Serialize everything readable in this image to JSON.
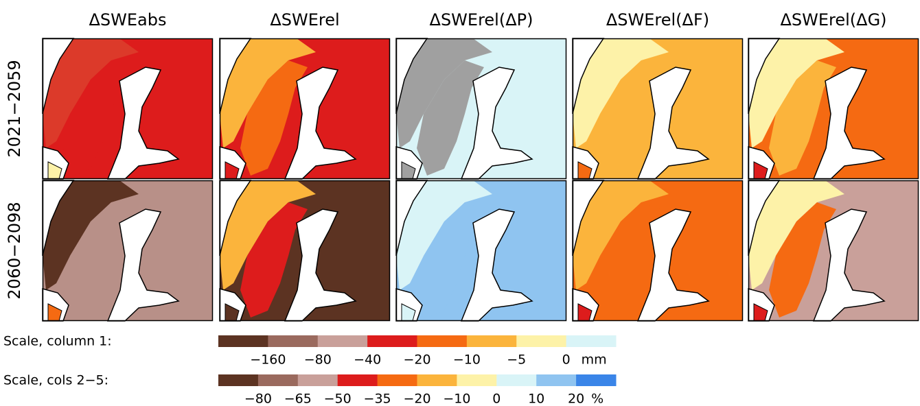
{
  "column_titles": [
    "ΔSWEabs",
    "ΔSWErel",
    "ΔSWErel(ΔP)",
    "ΔSWErel(ΔF)",
    "ΔSWErel(ΔG)"
  ],
  "row_labels": [
    "2021−2059",
    "2060−2098"
  ],
  "scales": [
    {
      "label": "Scale, column 1:",
      "colors": [
        "#5c3322",
        "#9a6a5e",
        "#c9a09a",
        "#dd1c1c",
        "#f56a12",
        "#fbb43c",
        "#fdf2a8",
        "#d9f4f7"
      ],
      "ticks": [
        {
          "value": -160,
          "label": "−160"
        },
        {
          "value": -80,
          "label": "−80"
        },
        {
          "value": -40,
          "label": "−40"
        },
        {
          "value": -20,
          "label": "−20"
        },
        {
          "value": -10,
          "label": "−10"
        },
        {
          "value": -5,
          "label": "−5"
        },
        0
      ],
      "unit": "mm"
    },
    {
      "label": "Scale, cols 2−5:",
      "colors": [
        "#5c3322",
        "#9a6a5e",
        "#c9a09a",
        "#dd1c1c",
        "#f56a12",
        "#fbb43c",
        "#fdf2a8",
        "#d9f4f7",
        "#8fc4f0",
        "#3a85e8"
      ],
      "ticks": [
        {
          "value": -80,
          "label": "−80"
        },
        {
          "value": -65,
          "label": "−65"
        },
        {
          "value": -50,
          "label": "−50"
        },
        {
          "value": -35,
          "label": "−35"
        },
        {
          "value": -20,
          "label": "−20"
        },
        {
          "value": -10,
          "label": "−10"
        },
        0,
        10,
        20
      ],
      "unit": "%"
    }
  ]
}
